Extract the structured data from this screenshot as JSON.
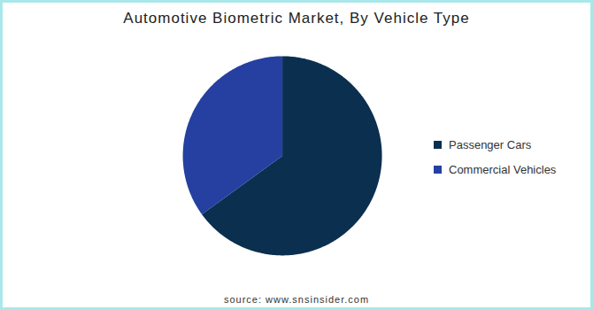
{
  "chart_data": {
    "type": "pie",
    "title": "Automotive Biometric Market, By Vehicle Type",
    "categories": [
      "Passenger Cars",
      "Commercial Vehicles"
    ],
    "values": [
      65,
      35
    ],
    "colors": [
      "#0b2f4f",
      "#2540a0"
    ],
    "legend": "right",
    "data_labels": false,
    "source": "source: www.snsinsider.com"
  }
}
